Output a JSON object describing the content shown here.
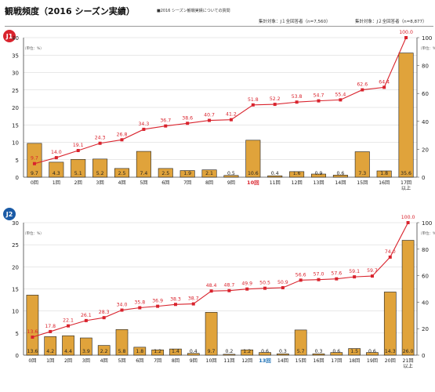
{
  "header": {
    "title": "観戦頻度（2016 シーズン実績）",
    "note": "■2016 シーズン観戦実績についての質問",
    "count_j1": "集計対象：J１全回答者（n=7,560）",
    "count_j2": "集計対象：J２全回答者（n=8,877）"
  },
  "chart_data": [
    {
      "type": "bar",
      "badge": "J1",
      "badge_color": "#d9232d",
      "highlight_color": "#d9232d",
      "bar_color": "#e0a33b",
      "line_color": "#d9232d",
      "unit_left": "（単位：%）",
      "unit_right": "（単位：%）",
      "categories": [
        "0回",
        "1回",
        "2回",
        "3回",
        "4回",
        "5回",
        "6回",
        "7回",
        "8回",
        "9回",
        "10回",
        "11回",
        "12回",
        "13回",
        "14回",
        "15回",
        "16回",
        "17回\n以上"
      ],
      "highlight_index": 10,
      "series": [
        {
          "type": "bar",
          "axis": "left",
          "values": [
            9.7,
            4.3,
            5.1,
            5.2,
            2.5,
            7.4,
            2.5,
            1.9,
            2.1,
            0.5,
            10.6,
            0.4,
            1.6,
            0.9,
            0.6,
            7.3,
            1.8,
            35.6
          ]
        },
        {
          "type": "line",
          "axis": "right",
          "values": [
            9.7,
            14.0,
            19.1,
            24.3,
            26.8,
            34.3,
            36.7,
            38.6,
            40.7,
            41.2,
            51.8,
            52.2,
            53.8,
            54.7,
            55.4,
            62.6,
            64.4,
            100.0
          ]
        }
      ],
      "ylim_left": [
        0,
        40
      ],
      "ylim_right": [
        0,
        100
      ],
      "ticks_left": [
        0,
        5,
        10,
        15,
        20,
        25,
        30,
        35,
        40
      ],
      "ticks_right": [
        0,
        20,
        40,
        60,
        80,
        100
      ],
      "grid": true
    },
    {
      "type": "bar",
      "badge": "J2",
      "badge_color": "#1a5aa6",
      "highlight_color": "#1a6fb5",
      "bar_color": "#e0a33b",
      "line_color": "#d9232d",
      "unit_left": "（単位：%）",
      "unit_right": "（単位：%）",
      "categories": [
        "0回",
        "1回",
        "2回",
        "3回",
        "4回",
        "5回",
        "6回",
        "7回",
        "8回",
        "9回",
        "10回",
        "11回",
        "12回",
        "13回",
        "14回",
        "15回",
        "16回",
        "17回",
        "18回",
        "19回",
        "20回",
        "21回\n以上"
      ],
      "highlight_index": 13,
      "series": [
        {
          "type": "bar",
          "axis": "left",
          "values": [
            13.6,
            4.2,
            4.4,
            3.9,
            2.2,
            5.8,
            1.8,
            1.2,
            1.4,
            0.4,
            9.7,
            0.2,
            1.2,
            0.6,
            0.3,
            5.7,
            0.3,
            0.6,
            1.5,
            0.6,
            14.3,
            26.0
          ]
        },
        {
          "type": "line",
          "axis": "right",
          "values": [
            13.6,
            17.8,
            22.1,
            26.1,
            28.3,
            34.0,
            35.8,
            36.9,
            38.3,
            38.7,
            48.4,
            48.7,
            49.9,
            50.5,
            50.9,
            56.6,
            57.0,
            57.6,
            59.1,
            59.7,
            74.0,
            100.0
          ]
        }
      ],
      "ylim_left": [
        0,
        30
      ],
      "ylim_right": [
        0,
        100
      ],
      "ticks_left": [
        0,
        5,
        10,
        15,
        20,
        25,
        30
      ],
      "ticks_right": [
        0,
        20,
        40,
        60,
        80,
        100
      ],
      "grid": true
    }
  ]
}
